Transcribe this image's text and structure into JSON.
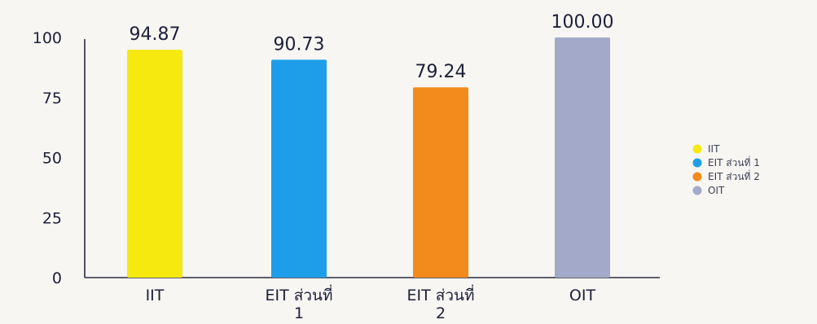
{
  "chart_data": {
    "type": "bar",
    "categories": [
      "IIT",
      "EIT ส่วนที่ 1",
      "EIT ส่วนที่ 2",
      "OIT"
    ],
    "category_lines": [
      [
        "IIT"
      ],
      [
        "EIT ส่วนที่",
        "1"
      ],
      [
        "EIT ส่วนที่",
        "2"
      ],
      [
        "OIT"
      ]
    ],
    "values": [
      94.87,
      90.73,
      79.24,
      100.0
    ],
    "value_labels": [
      "94.87",
      "90.73",
      "79.24",
      "100.00"
    ],
    "colors": [
      "#f5e90f",
      "#1e9ee8",
      "#f28a1c",
      "#a3a9c9"
    ],
    "ylim": [
      0,
      100
    ],
    "yticks": [
      0,
      25,
      50,
      75,
      100
    ],
    "title": "",
    "xlabel": "",
    "ylabel": "",
    "legend": {
      "position": "right",
      "entries": [
        "IIT",
        "EIT ส่วนที่ 1",
        "EIT ส่วนที่ 2",
        "OIT"
      ]
    }
  }
}
